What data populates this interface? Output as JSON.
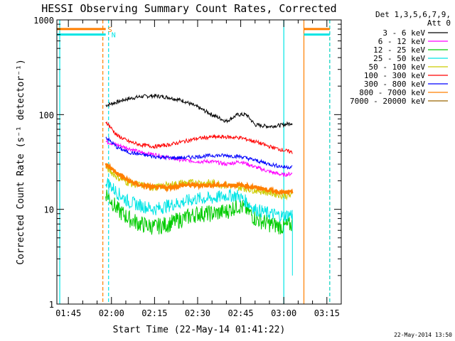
{
  "chart_data": {
    "type": "line",
    "title": "HESSI Observing Summary Count Rates, Corrected",
    "xlabel": "Start Time (22-May-14 01:41:22)",
    "ylabel": "Corrected Count Rate (s⁻¹ detector⁻¹)",
    "y_scale": "log",
    "ylim": [
      1,
      1000
    ],
    "xlim": [
      "01:41",
      "03:20"
    ],
    "x_tick_labels": [
      "01:45",
      "02:00",
      "02:15",
      "02:30",
      "02:45",
      "03:00",
      "03:15"
    ],
    "y_tick_labels": [
      "1",
      "10",
      "100",
      "1000"
    ],
    "legend_header": [
      "Det 1,3,5,6,7,9,",
      "Att 0"
    ],
    "legend_placement": "right",
    "flags": [
      {
        "label": "S",
        "color": "#ff7f00",
        "level": 800
      },
      {
        "label": "N",
        "color": "#00e5e5",
        "level": 700
      }
    ],
    "series": [
      {
        "name": "3 - 6 keV",
        "color": "#000000",
        "x": [
          "01:58",
          "02:05",
          "02:10",
          "02:15",
          "02:20",
          "02:25",
          "02:30",
          "02:35",
          "02:40",
          "02:44",
          "02:47",
          "02:50",
          "02:55",
          "03:00",
          "03:03"
        ],
        "y": [
          125,
          145,
          155,
          158,
          152,
          140,
          120,
          100,
          85,
          100,
          100,
          78,
          75,
          78,
          82
        ]
      },
      {
        "name": "6 - 12 keV",
        "color": "#ff00ff",
        "x": [
          "01:58",
          "02:05",
          "02:10",
          "02:15",
          "02:20",
          "02:25",
          "02:30",
          "02:35",
          "02:40",
          "02:45",
          "02:50",
          "02:55",
          "03:00",
          "03:03"
        ],
        "y": [
          52,
          45,
          40,
          38,
          35,
          33,
          32,
          32,
          30,
          32,
          28,
          25,
          23,
          24
        ]
      },
      {
        "name": "12 - 25 keV",
        "color": "#00cc00",
        "x": [
          "01:58",
          "02:02",
          "02:06",
          "02:10",
          "02:15",
          "02:20",
          "02:25",
          "02:30",
          "02:35",
          "02:40",
          "02:44",
          "02:47",
          "02:50",
          "02:55",
          "03:00",
          "03:03"
        ],
        "y": [
          15,
          10,
          8,
          7,
          6.5,
          7,
          8,
          9,
          9,
          9.5,
          11,
          10,
          8,
          7,
          6.5,
          7
        ]
      },
      {
        "name": "25 - 50 keV",
        "color": "#00e5e5",
        "x": [
          "01:58",
          "02:02",
          "02:06",
          "02:10",
          "02:15",
          "02:20",
          "02:25",
          "02:30",
          "02:35",
          "02:40",
          "02:44",
          "02:47",
          "02:50",
          "02:55",
          "03:00",
          "03:03"
        ],
        "y": [
          20,
          15,
          12,
          11,
          10,
          11,
          12,
          13,
          13,
          14,
          14,
          12,
          10,
          9,
          8.5,
          9
        ]
      },
      {
        "name": "50 - 100 keV",
        "color": "#cccc00",
        "x": [
          "01:58",
          "02:02",
          "02:06",
          "02:10",
          "02:15",
          "02:20",
          "02:25",
          "02:30",
          "02:35",
          "02:40",
          "02:45",
          "02:50",
          "02:55",
          "03:00",
          "03:03"
        ],
        "y": [
          28,
          22,
          19,
          18,
          17,
          18,
          19,
          19,
          19,
          18,
          17,
          16,
          15,
          14,
          14
        ]
      },
      {
        "name": "100 - 300 keV",
        "color": "#ff0000",
        "x": [
          "01:58",
          "02:02",
          "02:06",
          "02:10",
          "02:15",
          "02:20",
          "02:25",
          "02:30",
          "02:35",
          "02:40",
          "02:45",
          "02:50",
          "02:55",
          "03:00",
          "03:03"
        ],
        "y": [
          85,
          60,
          52,
          48,
          46,
          48,
          52,
          56,
          58,
          58,
          57,
          52,
          46,
          42,
          40
        ]
      },
      {
        "name": "300 - 800 keV",
        "color": "#0000ff",
        "x": [
          "01:58",
          "02:02",
          "02:06",
          "02:10",
          "02:15",
          "02:20",
          "02:25",
          "02:30",
          "02:35",
          "02:40",
          "02:45",
          "02:50",
          "02:55",
          "03:00",
          "03:03"
        ],
        "y": [
          58,
          45,
          40,
          38,
          36,
          35,
          35,
          36,
          37,
          37,
          36,
          33,
          30,
          28,
          28
        ]
      },
      {
        "name": "800 - 7000 keV",
        "color": "#ff7f00",
        "x": [
          "01:58",
          "02:02",
          "02:06",
          "02:10",
          "02:15",
          "02:20",
          "02:25",
          "02:30",
          "02:35",
          "02:40",
          "02:45",
          "02:50",
          "02:55",
          "03:00",
          "03:03"
        ],
        "y": [
          30,
          24,
          20,
          18,
          17,
          17,
          18,
          18,
          18,
          18,
          18,
          17,
          16,
          15,
          15
        ]
      },
      {
        "name": "7000 - 20000 keV",
        "color": "#996600",
        "x": [],
        "y": []
      }
    ],
    "vertical_markers": [
      {
        "x": "01:42",
        "color": "#00e5e5",
        "style": "solid"
      },
      {
        "x": "01:57",
        "color": "#ff7f00",
        "style": "dashed"
      },
      {
        "x": "01:59",
        "color": "#00e5e5",
        "style": "dashed"
      },
      {
        "x": "03:00",
        "color": "#00e5e5",
        "style": "solid"
      },
      {
        "x": "03:07",
        "color": "#ff7f00",
        "style": "solid"
      },
      {
        "x": "03:16",
        "color": "#ff7f00",
        "style": "dashed"
      },
      {
        "x": "03:16",
        "color": "#00e5e5",
        "style": "dashed"
      }
    ],
    "footer_date": "22-May-2014 13:50"
  }
}
